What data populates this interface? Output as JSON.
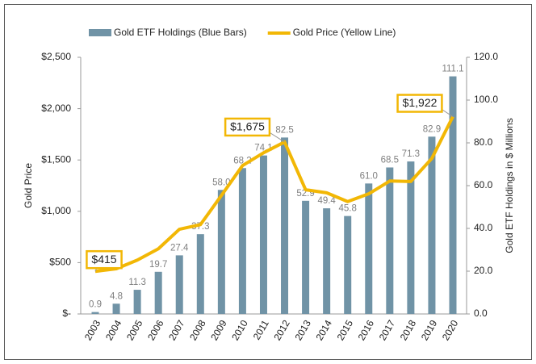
{
  "chart_data": {
    "type": "combo",
    "legend": "top",
    "ylabel": "Gold Price",
    "y2label": "Gold ETF Holdings in $ Millions",
    "categories": [
      "2003",
      "2004",
      "2005",
      "2006",
      "2007",
      "2008",
      "2009",
      "2010",
      "2011",
      "2012",
      "2013",
      "2014",
      "2015",
      "2016",
      "2017",
      "2018",
      "2019",
      "2020"
    ],
    "ylim": [
      0,
      2500
    ],
    "yticks": [
      {
        "value": 0,
        "label": "$-"
      },
      {
        "value": 500,
        "label": "$500"
      },
      {
        "value": 1000,
        "label": "$1,000"
      },
      {
        "value": 1500,
        "label": "$1,500"
      },
      {
        "value": 2000,
        "label": "$2,000"
      },
      {
        "value": 2500,
        "label": "$2,500"
      }
    ],
    "y2lim": [
      0,
      120
    ],
    "y2ticks": [
      {
        "value": 0,
        "label": "0.0"
      },
      {
        "value": 20,
        "label": "20.0"
      },
      {
        "value": 40,
        "label": "40.0"
      },
      {
        "value": 60,
        "label": "60.0"
      },
      {
        "value": 80,
        "label": "80.0"
      },
      {
        "value": 100,
        "label": "100.0"
      },
      {
        "value": 120,
        "label": "120.0"
      }
    ],
    "series": [
      {
        "name": "Gold ETF Holdings (Blue Bars)",
        "type": "bar",
        "axis": "y2",
        "color": "#7093a6",
        "values": [
          0.9,
          4.8,
          11.3,
          19.7,
          27.4,
          37.3,
          58.0,
          68.2,
          74.1,
          82.5,
          52.9,
          49.4,
          45.8,
          61.0,
          68.5,
          71.3,
          82.9,
          111.1
        ],
        "value_labels": [
          "0.9",
          "4.8",
          "11.3",
          "19.7",
          "27.4",
          "37.3",
          "58.0",
          "68.2",
          "74.1",
          "82.5",
          "52.9",
          "49.4",
          "45.8",
          "61.0",
          "68.5",
          "71.3",
          "82.9",
          "111.1"
        ]
      },
      {
        "name": "Gold Price (Yellow Line)",
        "type": "line",
        "color": "#f2b705",
        "values": [
          415,
          440,
          525,
          635,
          825,
          870,
          1155,
          1445,
          1570,
          1675,
          1210,
          1180,
          1095,
          1170,
          1295,
          1290,
          1515,
          1922
        ],
        "value_labels": [
          "$415",
          null,
          null,
          null,
          null,
          null,
          null,
          null,
          null,
          "$1,675",
          null,
          null,
          null,
          null,
          null,
          null,
          null,
          "$1,922"
        ]
      }
    ]
  }
}
